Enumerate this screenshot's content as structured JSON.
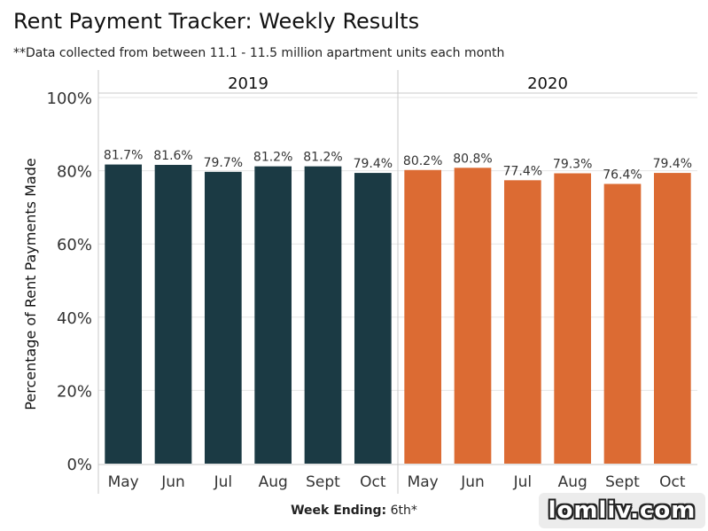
{
  "header": {
    "title": "Rent Payment Tracker: Weekly Results",
    "subtitle": "**Data collected from between 11.1 - 11.5 million apartment units each month"
  },
  "xaxis": {
    "label_bold": "Week Ending:",
    "label_rest": " 6th*"
  },
  "watermark": "lomliv.com",
  "colors": {
    "2019": "#1b3a44",
    "2020": "#dc6b33",
    "grid": "#e6e6e6",
    "axis": "#c8c8c8"
  },
  "chart_data": {
    "type": "bar",
    "title": "Rent Payment Tracker: Weekly Results",
    "ylabel": "Percentage of Rent Payments Made",
    "xlabel": "Week Ending: 6th*",
    "ylim": [
      0,
      100
    ],
    "yticks": [
      0,
      20,
      40,
      60,
      80,
      100
    ],
    "ytick_labels": [
      "0%",
      "20%",
      "40%",
      "60%",
      "80%",
      "100%"
    ],
    "categories": [
      "May",
      "Jun",
      "Jul",
      "Aug",
      "Sept",
      "Oct"
    ],
    "panels": [
      {
        "name": "2019",
        "values": [
          81.7,
          81.6,
          79.7,
          81.2,
          81.2,
          79.4
        ],
        "labels": [
          "81.7%",
          "81.6%",
          "79.7%",
          "81.2%",
          "81.2%",
          "79.4%"
        ]
      },
      {
        "name": "2020",
        "values": [
          80.2,
          80.8,
          77.4,
          79.3,
          76.4,
          79.4
        ],
        "labels": [
          "80.2%",
          "80.8%",
          "77.4%",
          "79.3%",
          "76.4%",
          "79.4%"
        ]
      }
    ]
  }
}
